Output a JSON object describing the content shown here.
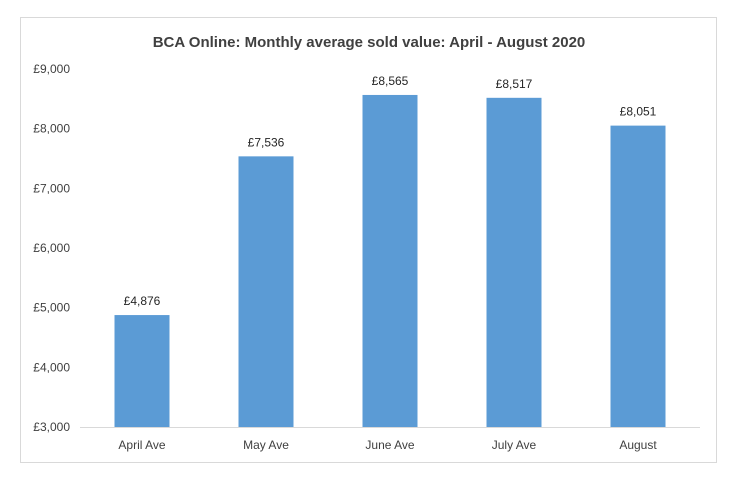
{
  "chart_data": {
    "type": "bar",
    "title": "BCA Online: Monthly average sold value: April - August 2020",
    "categories": [
      "April Ave",
      "May Ave",
      "June Ave",
      "July Ave",
      "August"
    ],
    "values": [
      4876,
      7536,
      8565,
      8517,
      8051
    ],
    "value_labels": [
      "£4,876",
      "£7,536",
      "£8,565",
      "£8,517",
      "£8,051"
    ],
    "ylim": [
      3000,
      9000
    ],
    "y_ticks": [
      3000,
      4000,
      5000,
      6000,
      7000,
      8000,
      9000
    ],
    "y_tick_labels": [
      "£3,000",
      "£4,000",
      "£5,000",
      "£6,000",
      "£7,000",
      "£8,000",
      "£9,000"
    ],
    "xlabel": "",
    "ylabel": "",
    "grid": false,
    "legend": "none",
    "bar_color": "#5b9bd5"
  }
}
